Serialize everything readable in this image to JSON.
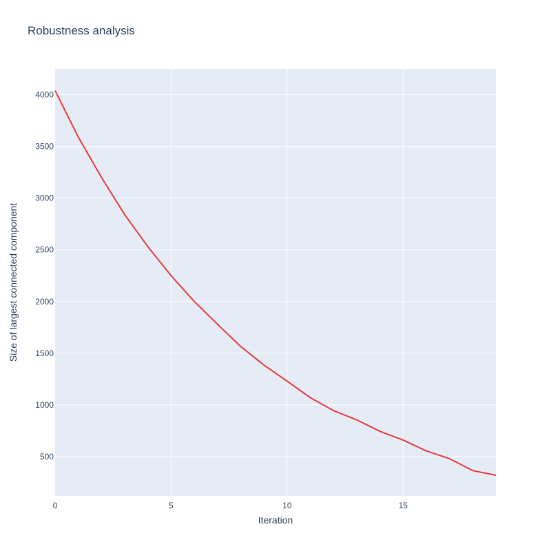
{
  "chart_data": {
    "type": "line",
    "title": "Robustness analysis",
    "xlabel": "Iteration",
    "ylabel": "Size of largest connected component",
    "xlim": [
      0,
      19
    ],
    "ylim": [
      120,
      4250
    ],
    "x_ticks": [
      0,
      5,
      10,
      15
    ],
    "y_ticks": [
      500,
      1000,
      1500,
      2000,
      2500,
      3000,
      3500,
      4000
    ],
    "grid": true,
    "legend": "none",
    "colors": {
      "line": "#e4393b",
      "plot_bg": "#e5ecf6",
      "grid": "#ffffff",
      "text": "#2a3f5f"
    },
    "series": [
      {
        "x": [
          0,
          1,
          2,
          3,
          4,
          5,
          6,
          7,
          8,
          9,
          10,
          11,
          12,
          13,
          14,
          15,
          16,
          17,
          18,
          19
        ],
        "y": [
          4040,
          3590,
          3200,
          2840,
          2530,
          2250,
          2000,
          1780,
          1565,
          1385,
          1230,
          1070,
          945,
          855,
          745,
          660,
          555,
          480,
          365,
          320
        ]
      }
    ]
  }
}
